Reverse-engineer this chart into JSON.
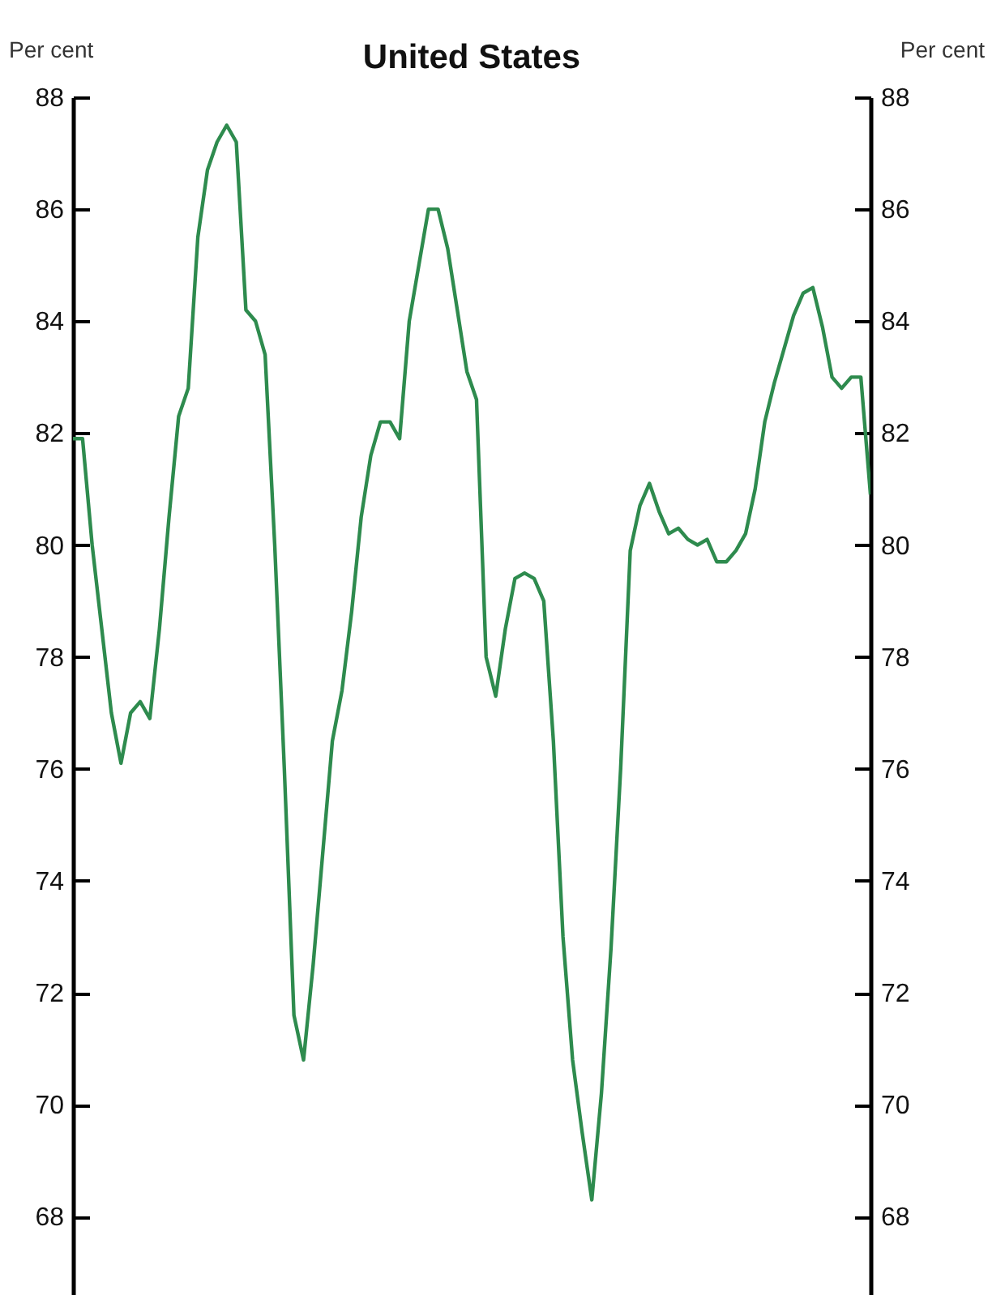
{
  "chart_data": {
    "type": "line",
    "title": "United States",
    "ylabel": "Per cent",
    "y2label": "Per cent",
    "categories": [
      null,
      null,
      null,
      null,
      null,
      null,
      null,
      null,
      null,
      null,
      null,
      null,
      null,
      null,
      null,
      null,
      null,
      null,
      null,
      null,
      null,
      null,
      null,
      null,
      null,
      null,
      null,
      null,
      null,
      null,
      null,
      null,
      null,
      null,
      null,
      null,
      null,
      null,
      null,
      null,
      null,
      null,
      null,
      null,
      null,
      null,
      null,
      null,
      null,
      null,
      null,
      null,
      null,
      null,
      null,
      null,
      null,
      null,
      null,
      null,
      null,
      null,
      null,
      null,
      null,
      null,
      null,
      null,
      null,
      null,
      null,
      null,
      null,
      null,
      null,
      null,
      null,
      null,
      null,
      null,
      null,
      null,
      null,
      null
    ],
    "series": [
      {
        "color": "#2e8b4e",
        "values": [
          81.9,
          81.9,
          80.0,
          78.5,
          77.0,
          76.1,
          77.0,
          77.2,
          76.9,
          78.5,
          80.5,
          82.3,
          82.8,
          85.5,
          86.7,
          87.2,
          87.5,
          87.2,
          84.2,
          84.0,
          83.4,
          80.0,
          76.0,
          71.6,
          70.8,
          72.5,
          74.5,
          76.5,
          77.4,
          78.8,
          80.5,
          81.6,
          82.2,
          82.2,
          81.9,
          84.0,
          85.0,
          86.0,
          86.0,
          85.3,
          84.2,
          83.1,
          82.6,
          78.0,
          77.3,
          78.5,
          79.4,
          79.5,
          79.4,
          79.0,
          76.5,
          73.0,
          70.8,
          69.5,
          68.3,
          70.2,
          72.8,
          76.0,
          79.9,
          80.7,
          81.1,
          80.6,
          80.2,
          80.3,
          80.1,
          80.0,
          80.1,
          79.7,
          79.7,
          79.9,
          80.2,
          81.0,
          82.2,
          82.9,
          83.5,
          84.1,
          84.5,
          84.6,
          83.9,
          83.0,
          82.8,
          83.0,
          83.0,
          80.9
        ]
      }
    ],
    "ylim": [
      66.6,
      88
    ],
    "yticks": [
      68,
      70,
      72,
      74,
      76,
      78,
      80,
      82,
      84,
      86,
      88
    ],
    "y2lim": [
      66.6,
      88
    ],
    "y2ticks": [
      68,
      70,
      72,
      74,
      76,
      78,
      80,
      82,
      84,
      86,
      88
    ]
  }
}
